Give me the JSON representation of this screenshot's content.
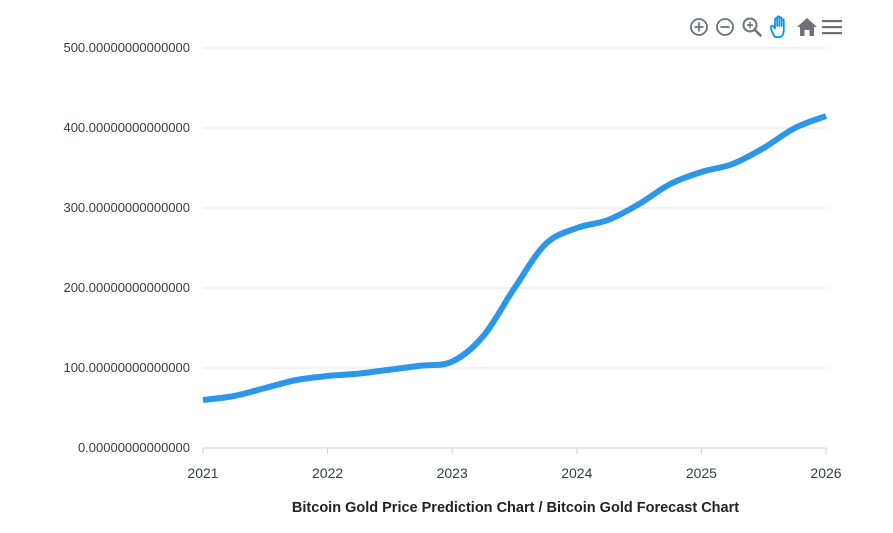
{
  "toolbar": {
    "icons": [
      "zoom-in-icon",
      "zoom-out-icon",
      "zoom-icon",
      "pan-hand-icon",
      "home-icon",
      "menu-icon"
    ],
    "icon_color": "#6e7079",
    "active_color": "#008ffb"
  },
  "chart_data": {
    "type": "line",
    "title": "Bitcoin Gold Price Prediction Chart / Bitcoin Gold Forecast Chart",
    "xlabel": "",
    "ylabel": "",
    "x_ticks": [
      "2021",
      "2022",
      "2023",
      "2024",
      "2025",
      "2026"
    ],
    "y_ticks": [
      "0.00000000000000",
      "100.00000000000000",
      "200.00000000000000",
      "300.00000000000000",
      "400.00000000000000",
      "500.00000000000000"
    ],
    "xlim": [
      2021,
      2026
    ],
    "ylim": [
      0,
      500
    ],
    "grid": true,
    "line_color": "#2b96ea",
    "series": [
      {
        "x": [
          2021,
          2021.25,
          2021.5,
          2021.75,
          2022,
          2022.25,
          2022.5,
          2022.75,
          2023,
          2023.25,
          2023.5,
          2023.75,
          2024,
          2024.25,
          2024.5,
          2024.75,
          2025,
          2025.25,
          2025.5,
          2025.75,
          2026
        ],
        "values": [
          60,
          65,
          75,
          85,
          90,
          93,
          98,
          103,
          108,
          140,
          200,
          255,
          275,
          285,
          305,
          330,
          345,
          355,
          375,
          400,
          415
        ]
      }
    ]
  }
}
